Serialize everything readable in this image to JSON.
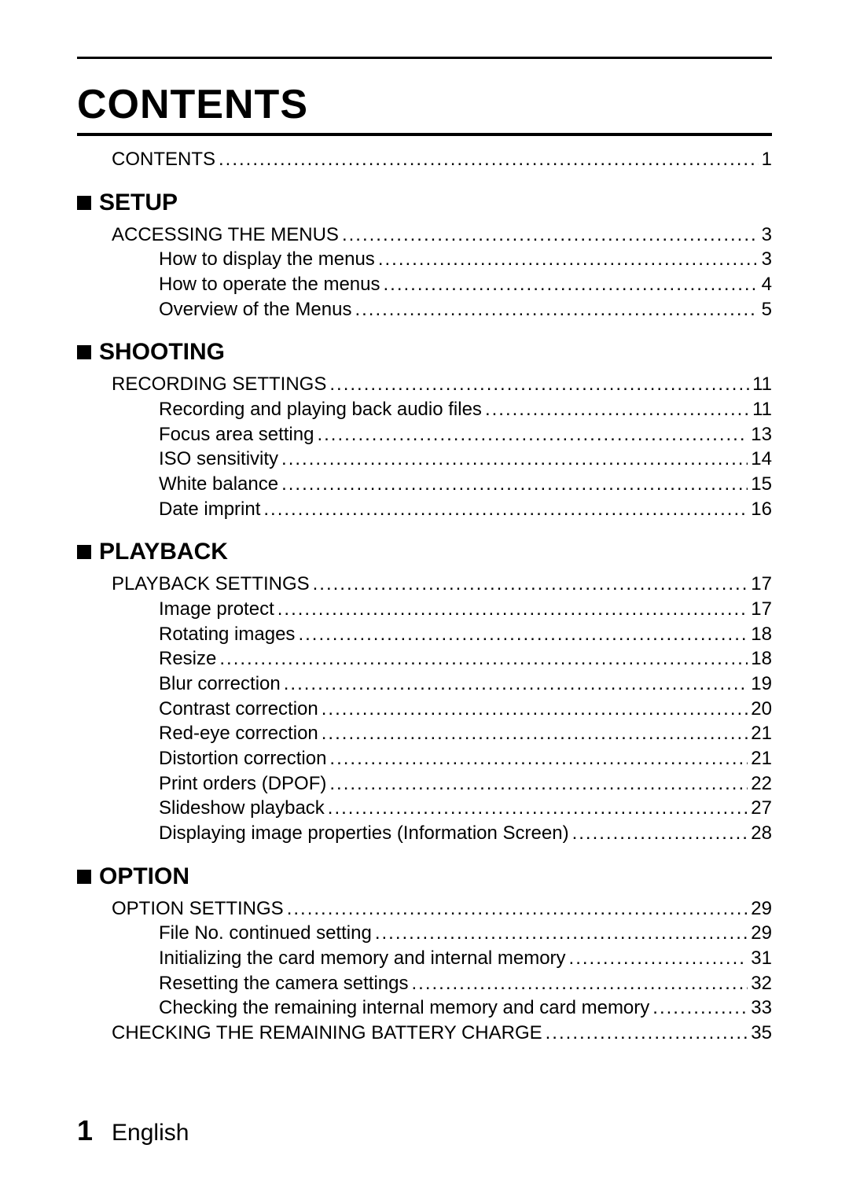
{
  "page_title": "CONTENTS",
  "footer": {
    "page_number": "1",
    "language": "English"
  },
  "top_entry": {
    "label": "CONTENTS",
    "page": "1",
    "level": 1
  },
  "sections": [
    {
      "heading": "SETUP",
      "entries": [
        {
          "label": "ACCESSING THE MENUS",
          "page": "3",
          "level": 1
        },
        {
          "label": "How to display the menus",
          "page": "3",
          "level": 2
        },
        {
          "label": "How to operate the menus",
          "page": "4",
          "level": 2
        },
        {
          "label": "Overview of the Menus",
          "page": "5",
          "level": 2
        }
      ]
    },
    {
      "heading": "SHOOTING",
      "entries": [
        {
          "label": "RECORDING SETTINGS",
          "page": "11",
          "level": 1
        },
        {
          "label": "Recording and playing back audio files",
          "page": "11",
          "level": 2
        },
        {
          "label": "Focus area setting",
          "page": "13",
          "level": 2
        },
        {
          "label": "ISO sensitivity",
          "page": "14",
          "level": 2
        },
        {
          "label": "White balance",
          "page": "15",
          "level": 2
        },
        {
          "label": "Date imprint",
          "page": "16",
          "level": 2
        }
      ]
    },
    {
      "heading": "PLAYBACK",
      "entries": [
        {
          "label": "PLAYBACK SETTINGS",
          "page": "17",
          "level": 1
        },
        {
          "label": "Image protect",
          "page": "17",
          "level": 2
        },
        {
          "label": "Rotating images",
          "page": "18",
          "level": 2
        },
        {
          "label": "Resize",
          "page": "18",
          "level": 2
        },
        {
          "label": "Blur correction",
          "page": "19",
          "level": 2
        },
        {
          "label": "Contrast correction",
          "page": "20",
          "level": 2
        },
        {
          "label": "Red-eye correction",
          "page": "21",
          "level": 2
        },
        {
          "label": "Distortion correction",
          "page": "21",
          "level": 2
        },
        {
          "label": "Print orders (DPOF)",
          "page": "22",
          "level": 2
        },
        {
          "label": "Slideshow playback",
          "page": "27",
          "level": 2
        },
        {
          "label": "Displaying image properties (Information Screen)",
          "page": "28",
          "level": 2
        }
      ]
    },
    {
      "heading": "OPTION",
      "entries": [
        {
          "label": "OPTION SETTINGS",
          "page": "29",
          "level": 1
        },
        {
          "label": "File No. continued setting",
          "page": "29",
          "level": 2
        },
        {
          "label": "Initializing the card memory and internal memory",
          "page": "31",
          "level": 2
        },
        {
          "label": "Resetting the camera settings",
          "page": "32",
          "level": 2
        },
        {
          "label": "Checking the remaining internal memory and card memory",
          "page": "33",
          "level": 2
        },
        {
          "label": "CHECKING THE REMAINING BATTERY CHARGE",
          "page": "35",
          "level": 1
        }
      ]
    }
  ]
}
